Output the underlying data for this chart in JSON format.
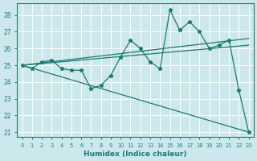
{
  "xlabel": "Humidex (Indice chaleur)",
  "bg_color": "#cde8ec",
  "grid_color": "#b0d8de",
  "line_color": "#1a7a6e",
  "xlim": [
    -0.5,
    23.5
  ],
  "ylim": [
    20.7,
    28.7
  ],
  "yticks": [
    21,
    22,
    23,
    24,
    25,
    26,
    27,
    28
  ],
  "xticks": [
    0,
    1,
    2,
    3,
    4,
    5,
    6,
    7,
    8,
    9,
    10,
    11,
    12,
    13,
    14,
    15,
    16,
    17,
    18,
    19,
    20,
    21,
    22,
    23
  ],
  "main_x": [
    0,
    1,
    2,
    3,
    4,
    5,
    6,
    7,
    8,
    9,
    10,
    11,
    12,
    13,
    14,
    15,
    16,
    17,
    18,
    19,
    20,
    21,
    22,
    23
  ],
  "main_y": [
    25.0,
    24.8,
    25.2,
    25.3,
    24.8,
    24.7,
    24.7,
    23.6,
    23.8,
    24.4,
    25.5,
    26.5,
    26.0,
    25.2,
    24.8,
    28.3,
    27.1,
    27.6,
    27.0,
    26.0,
    26.2,
    26.5,
    23.5,
    21.0
  ],
  "line1_x": [
    0,
    23
  ],
  "line1_y": [
    25.0,
    21.0
  ],
  "line2_x": [
    0,
    23
  ],
  "line2_y": [
    25.0,
    26.6
  ],
  "line3_x": [
    0,
    23
  ],
  "line3_y": [
    25.0,
    26.2
  ]
}
